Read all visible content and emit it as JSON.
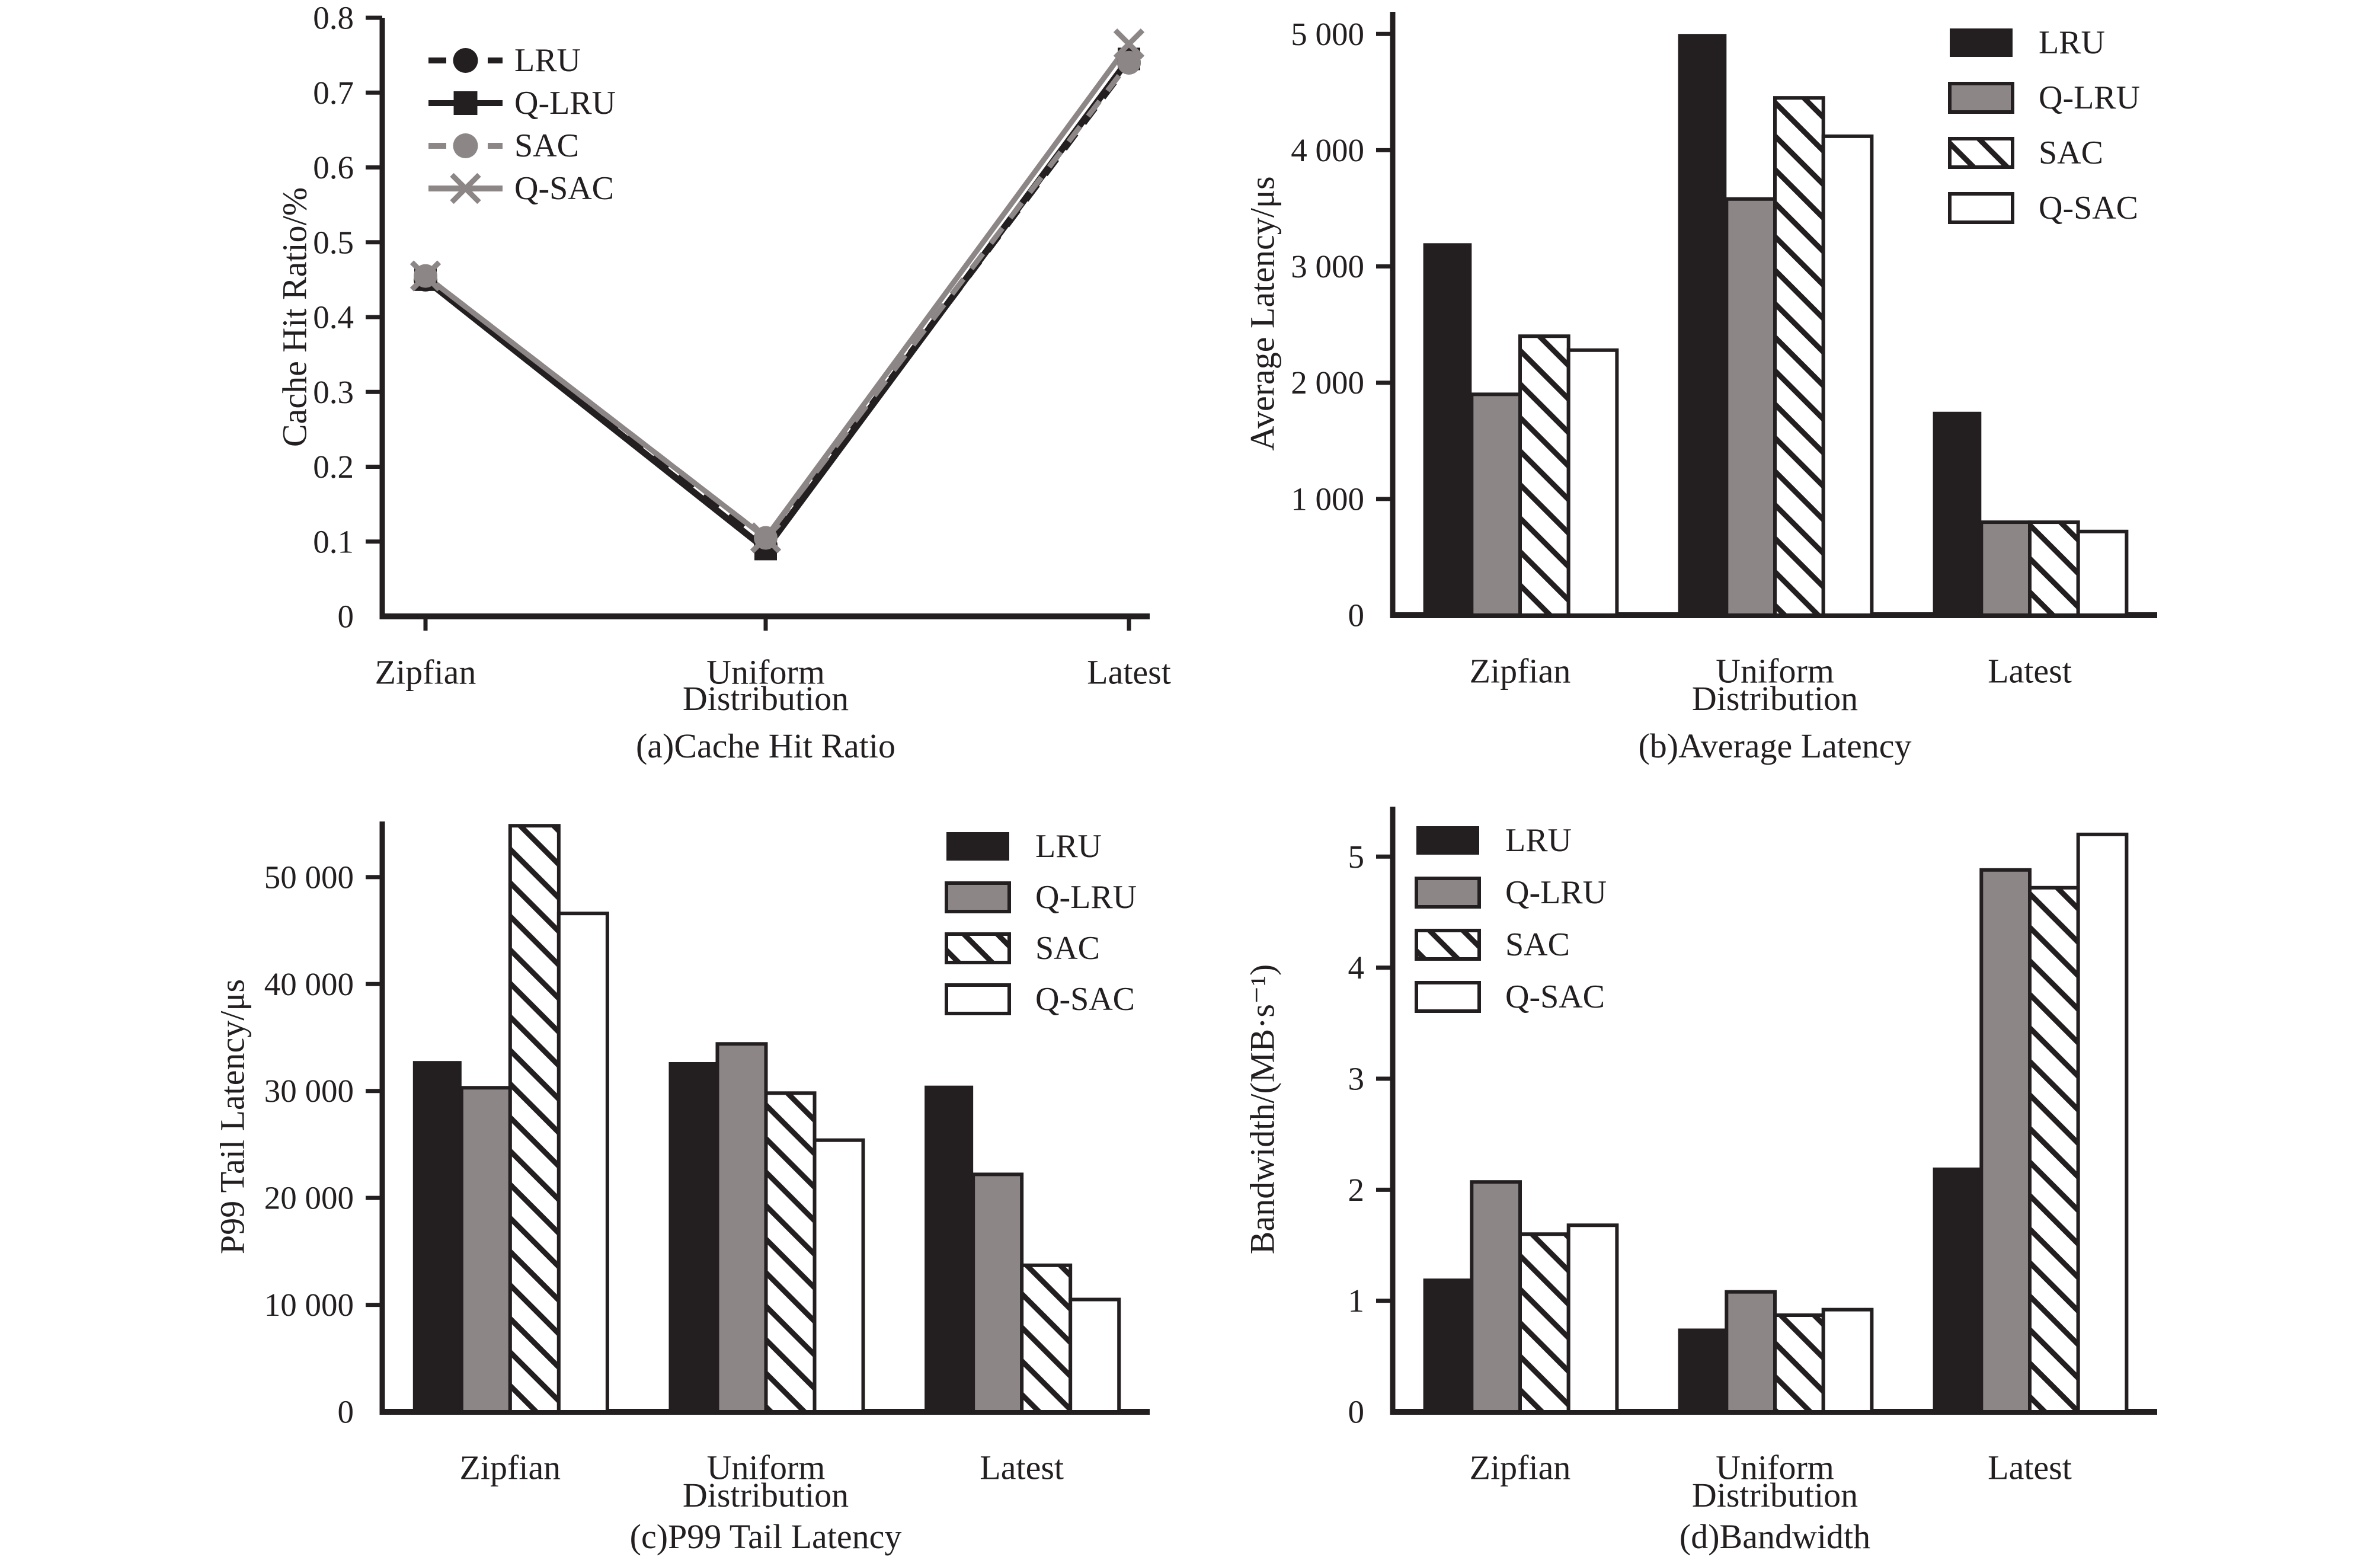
{
  "figure": {
    "background": "#ffffff",
    "colors": {
      "black": "#231f20",
      "gray": "#8d8687",
      "white": "#ffffff",
      "axis": "#231f20"
    },
    "algorithms": [
      "LRU",
      "Q-LRU",
      "SAC",
      "Q-SAC"
    ]
  },
  "chart_data": [
    {
      "id": "a",
      "type": "line",
      "caption": "(a)Cache Hit Ratio",
      "xlabel": "Distribution",
      "ylabel": "Cache Hit Ratio/%",
      "categories": [
        "Zipfian",
        "Uniform",
        "Latest"
      ],
      "ylim": [
        0,
        0.8
      ],
      "ytick_values": [
        0,
        0.1,
        0.2,
        0.3,
        0.4,
        0.5,
        0.6,
        0.7,
        0.8
      ],
      "ytick_labels": [
        "0",
        "0.1",
        "0.2",
        "0.3",
        "0.4",
        "0.5",
        "0.6",
        "0.7",
        "0.8"
      ],
      "grid": false,
      "legend_position": "top-left",
      "series": [
        {
          "name": "LRU",
          "values": [
            0.45,
            0.095,
            0.74
          ],
          "style": {
            "color": "black",
            "line": "dashed",
            "marker": "circle"
          }
        },
        {
          "name": "Q-LRU",
          "values": [
            0.45,
            0.09,
            0.745
          ],
          "style": {
            "color": "black",
            "line": "solid",
            "marker": "square"
          }
        },
        {
          "name": "SAC",
          "values": [
            0.455,
            0.105,
            0.74
          ],
          "style": {
            "color": "gray",
            "line": "dashed",
            "marker": "circle"
          }
        },
        {
          "name": "Q-SAC",
          "values": [
            0.455,
            0.105,
            0.765
          ],
          "style": {
            "color": "gray",
            "line": "solid",
            "marker": "x"
          }
        }
      ]
    },
    {
      "id": "b",
      "type": "bar",
      "caption": "(b)Average Latency",
      "xlabel": "Distribution",
      "ylabel": "Average Latency/μs",
      "categories": [
        "Zipfian",
        "Uniform",
        "Latest"
      ],
      "ylim": [
        0,
        5190
      ],
      "ytick_values": [
        0,
        1000,
        2000,
        3000,
        4000,
        5000
      ],
      "ytick_labels": [
        "0",
        "1 000",
        "2 000",
        "3 000",
        "4 000",
        "5 000"
      ],
      "grid": false,
      "legend_position": "top-right",
      "series": [
        {
          "name": "LRU",
          "values": [
            3200,
            5000,
            1750
          ],
          "style": {
            "fill": "black"
          }
        },
        {
          "name": "Q-LRU",
          "values": [
            1900,
            3580,
            800
          ],
          "style": {
            "fill": "gray"
          }
        },
        {
          "name": "SAC",
          "values": [
            2400,
            4450,
            800
          ],
          "style": {
            "fill": "hatch"
          }
        },
        {
          "name": "Q-SAC",
          "values": [
            2280,
            4120,
            720
          ],
          "style": {
            "fill": "white"
          }
        }
      ]
    },
    {
      "id": "c",
      "type": "bar",
      "caption": "(c)P99 Tail Latency",
      "xlabel": "Distribution",
      "ylabel": "P99 Tail Latency/μs",
      "categories": [
        "Zipfian",
        "Uniform",
        "Latest"
      ],
      "ylim": [
        0,
        55200
      ],
      "ytick_values": [
        0,
        10000,
        20000,
        30000,
        40000,
        50000
      ],
      "ytick_labels": [
        "0",
        "10 000",
        "20 000",
        "30 000",
        "40 000",
        "50 000"
      ],
      "grid": false,
      "legend_position": "top-right",
      "series": [
        {
          "name": "LRU",
          "values": [
            32800,
            32700,
            30500
          ],
          "style": {
            "fill": "black"
          }
        },
        {
          "name": "Q-LRU",
          "values": [
            30300,
            34400,
            22200
          ],
          "style": {
            "fill": "gray"
          }
        },
        {
          "name": "SAC",
          "values": [
            54800,
            29800,
            13700
          ],
          "style": {
            "fill": "hatch"
          }
        },
        {
          "name": "Q-SAC",
          "values": [
            46600,
            25400,
            10500
          ],
          "style": {
            "fill": "white"
          }
        }
      ]
    },
    {
      "id": "d",
      "type": "bar",
      "caption": "(d)Bandwidth",
      "xlabel": "Distribution",
      "ylabel": "Bandwidth/(MB·s⁻¹)",
      "categories": [
        "Zipfian",
        "Uniform",
        "Latest"
      ],
      "ylim": [
        0,
        5.45
      ],
      "ytick_values": [
        0,
        1,
        2,
        3,
        4,
        5
      ],
      "ytick_labels": [
        "0",
        "1",
        "2",
        "3",
        "4",
        "5"
      ],
      "grid": false,
      "legend_position": "top-left",
      "series": [
        {
          "name": "LRU",
          "values": [
            1.2,
            0.75,
            2.2
          ],
          "style": {
            "fill": "black"
          }
        },
        {
          "name": "Q-LRU",
          "values": [
            2.07,
            1.08,
            4.88
          ],
          "style": {
            "fill": "gray"
          }
        },
        {
          "name": "SAC",
          "values": [
            1.6,
            0.87,
            4.72
          ],
          "style": {
            "fill": "hatch"
          }
        },
        {
          "name": "Q-SAC",
          "values": [
            1.68,
            0.92,
            5.2
          ],
          "style": {
            "fill": "white"
          }
        }
      ]
    }
  ]
}
